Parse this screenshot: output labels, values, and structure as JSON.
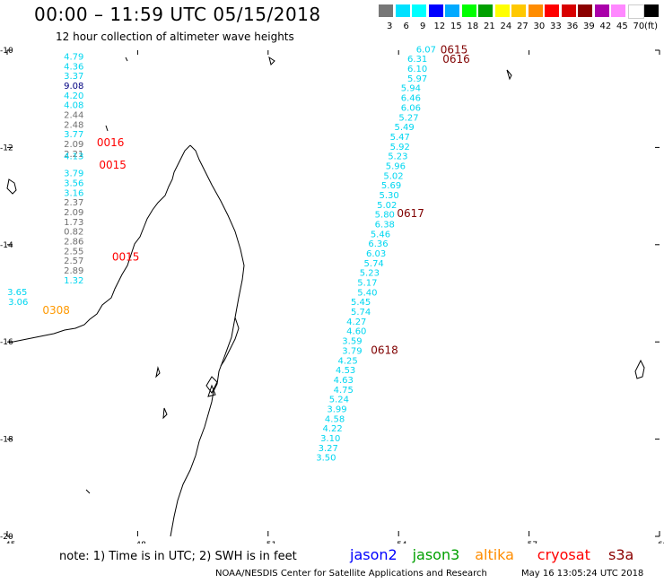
{
  "title": "00:00 – 11:59 UTC 05/15/2018",
  "subtitle": "12 hour collection of altimeter wave heights",
  "scale": {
    "labels": [
      "3",
      "6",
      "9",
      "12",
      "15",
      "18",
      "21",
      "24",
      "27",
      "30",
      "33",
      "36",
      "39",
      "42",
      "45",
      "70",
      "(ft)"
    ],
    "colors": [
      "#777777",
      "#00e1ff",
      "#00ffff",
      "#0000ff",
      "#00aaff",
      "#00ff00",
      "#00a000",
      "#ffff00",
      "#ffc800",
      "#ff8c00",
      "#ff0000",
      "#d80000",
      "#8b0000",
      "#aa00aa",
      "#ff88ff",
      "#ffffff",
      "#000000"
    ]
  },
  "map": {
    "lon_ticks": [
      "45",
      "48",
      "51",
      "54",
      "57",
      "60"
    ],
    "lat_ticks": [
      "-10",
      "-12",
      "-14",
      "-16",
      "-18",
      "-20"
    ],
    "lon_range": [
      45,
      60
    ],
    "lat_range": [
      -20,
      -10
    ],
    "tracks": [
      {
        "satellite": "jason2",
        "points": [
          {
            "lon": 46.55,
            "lat": -10.12,
            "v": "4.79",
            "c": "cyan"
          },
          {
            "lon": 46.55,
            "lat": -10.32,
            "v": "4.36",
            "c": "cyan"
          },
          {
            "lon": 46.55,
            "lat": -10.52,
            "v": "3.37",
            "c": "cyan"
          },
          {
            "lon": 46.55,
            "lat": -10.72,
            "v": "9.08",
            "c": "navy"
          },
          {
            "lon": 46.55,
            "lat": -10.92,
            "v": "4.20",
            "c": "cyan"
          },
          {
            "lon": 46.55,
            "lat": -11.12,
            "v": "4.08",
            "c": "cyan"
          },
          {
            "lon": 46.55,
            "lat": -11.32,
            "v": "2.44",
            "c": "gray"
          },
          {
            "lon": 46.55,
            "lat": -11.52,
            "v": "2.48",
            "c": "gray"
          },
          {
            "lon": 46.55,
            "lat": -11.72,
            "v": "3.77",
            "c": "cyan"
          },
          {
            "lon": 46.55,
            "lat": -11.92,
            "v": "2.09",
            "c": "gray"
          },
          {
            "lon": 46.55,
            "lat": -12.12,
            "v": "2.21",
            "c": "gray"
          },
          {
            "lon": 46.55,
            "lat": -12.17,
            "v": "4.13",
            "c": "cyan"
          },
          {
            "lon": 46.55,
            "lat": -12.52,
            "v": "3.79",
            "c": "cyan"
          },
          {
            "lon": 46.55,
            "lat": -12.72,
            "v": "3.56",
            "c": "cyan"
          },
          {
            "lon": 46.55,
            "lat": -12.92,
            "v": "3.16",
            "c": "cyan"
          },
          {
            "lon": 46.55,
            "lat": -13.12,
            "v": "2.37",
            "c": "gray"
          },
          {
            "lon": 46.55,
            "lat": -13.32,
            "v": "2.09",
            "c": "gray"
          },
          {
            "lon": 46.55,
            "lat": -13.52,
            "v": "1.73",
            "c": "gray"
          },
          {
            "lon": 46.55,
            "lat": -13.72,
            "v": "0.82",
            "c": "gray"
          },
          {
            "lon": 46.55,
            "lat": -13.92,
            "v": "2.86",
            "c": "gray"
          },
          {
            "lon": 46.55,
            "lat": -14.12,
            "v": "2.55",
            "c": "gray"
          },
          {
            "lon": 46.55,
            "lat": -14.32,
            "v": "2.57",
            "c": "gray"
          },
          {
            "lon": 46.55,
            "lat": -14.52,
            "v": "2.89",
            "c": "gray"
          },
          {
            "lon": 46.55,
            "lat": -14.72,
            "v": "1.32",
            "c": "cyan"
          },
          {
            "lon": 45.25,
            "lat": -14.96,
            "v": "3.65",
            "c": "cyan"
          },
          {
            "lon": 45.27,
            "lat": -15.17,
            "v": "3.06",
            "c": "cyan"
          }
        ]
      },
      {
        "satellite": "jason2",
        "points": [
          {
            "lon": 54.65,
            "lat": -9.97,
            "v": "6.07",
            "c": "cyan"
          },
          {
            "lon": 54.45,
            "lat": -10.17,
            "v": "6.31",
            "c": "cyan"
          },
          {
            "lon": 54.45,
            "lat": -10.37,
            "v": "6.10",
            "c": "cyan"
          },
          {
            "lon": 54.45,
            "lat": -10.57,
            "v": "5.97",
            "c": "cyan"
          },
          {
            "lon": 54.3,
            "lat": -10.77,
            "v": "5.94",
            "c": "cyan"
          },
          {
            "lon": 54.3,
            "lat": -10.97,
            "v": "6.46",
            "c": "cyan"
          },
          {
            "lon": 54.3,
            "lat": -11.17,
            "v": "6.06",
            "c": "cyan"
          },
          {
            "lon": 54.25,
            "lat": -11.37,
            "v": "5.27",
            "c": "cyan"
          },
          {
            "lon": 54.15,
            "lat": -11.57,
            "v": "5.49",
            "c": "cyan"
          },
          {
            "lon": 54.05,
            "lat": -11.77,
            "v": "5.47",
            "c": "cyan"
          },
          {
            "lon": 54.05,
            "lat": -11.97,
            "v": "5.92",
            "c": "cyan"
          },
          {
            "lon": 54.0,
            "lat": -12.17,
            "v": "5.23",
            "c": "cyan"
          },
          {
            "lon": 53.95,
            "lat": -12.37,
            "v": "5.96",
            "c": "cyan"
          },
          {
            "lon": 53.9,
            "lat": -12.57,
            "v": "5.02",
            "c": "cyan"
          },
          {
            "lon": 53.85,
            "lat": -12.77,
            "v": "5.69",
            "c": "cyan"
          },
          {
            "lon": 53.8,
            "lat": -12.97,
            "v": "5.30",
            "c": "cyan"
          },
          {
            "lon": 53.75,
            "lat": -13.17,
            "v": "5.02",
            "c": "cyan"
          },
          {
            "lon": 53.7,
            "lat": -13.37,
            "v": "5.80",
            "c": "cyan"
          },
          {
            "lon": 53.7,
            "lat": -13.57,
            "v": "6.38",
            "c": "cyan"
          },
          {
            "lon": 53.6,
            "lat": -13.77,
            "v": "5.46",
            "c": "cyan"
          },
          {
            "lon": 53.55,
            "lat": -13.97,
            "v": "6.36",
            "c": "cyan"
          },
          {
            "lon": 53.5,
            "lat": -14.17,
            "v": "6.03",
            "c": "cyan"
          },
          {
            "lon": 53.45,
            "lat": -14.37,
            "v": "5.74",
            "c": "cyan"
          },
          {
            "lon": 53.35,
            "lat": -14.57,
            "v": "5.23",
            "c": "cyan"
          },
          {
            "lon": 53.3,
            "lat": -14.77,
            "v": "5.17",
            "c": "cyan"
          },
          {
            "lon": 53.3,
            "lat": -14.97,
            "v": "5.40",
            "c": "cyan"
          },
          {
            "lon": 53.15,
            "lat": -15.17,
            "v": "5.45",
            "c": "cyan"
          },
          {
            "lon": 53.15,
            "lat": -15.37,
            "v": "5.74",
            "c": "cyan"
          },
          {
            "lon": 53.05,
            "lat": -15.57,
            "v": "4.27",
            "c": "cyan"
          },
          {
            "lon": 53.05,
            "lat": -15.77,
            "v": "4.60",
            "c": "cyan"
          },
          {
            "lon": 52.95,
            "lat": -15.97,
            "v": "3.59",
            "c": "cyan"
          },
          {
            "lon": 52.95,
            "lat": -16.17,
            "v": "3.79",
            "c": "cyan"
          },
          {
            "lon": 52.85,
            "lat": -16.37,
            "v": "4.25",
            "c": "cyan"
          },
          {
            "lon": 52.8,
            "lat": -16.57,
            "v": "4.53",
            "c": "cyan"
          },
          {
            "lon": 52.75,
            "lat": -16.77,
            "v": "4.63",
            "c": "cyan"
          },
          {
            "lon": 52.75,
            "lat": -16.97,
            "v": "4.75",
            "c": "cyan"
          },
          {
            "lon": 52.65,
            "lat": -17.17,
            "v": "5.24",
            "c": "cyan"
          },
          {
            "lon": 52.6,
            "lat": -17.37,
            "v": "3.99",
            "c": "cyan"
          },
          {
            "lon": 52.55,
            "lat": -17.57,
            "v": "4.58",
            "c": "cyan"
          },
          {
            "lon": 52.5,
            "lat": -17.77,
            "v": "4.22",
            "c": "cyan"
          },
          {
            "lon": 52.45,
            "lat": -17.97,
            "v": "3.10",
            "c": "cyan"
          },
          {
            "lon": 52.4,
            "lat": -18.17,
            "v": "3.27",
            "c": "cyan"
          },
          {
            "lon": 52.35,
            "lat": -18.37,
            "v": "3.50",
            "c": "cyan"
          }
        ]
      }
    ],
    "time_labels": [
      {
        "lon": 47.35,
        "lat": -11.88,
        "t": "0016",
        "c": "red"
      },
      {
        "lon": 47.4,
        "lat": -12.34,
        "t": "0015",
        "c": "red"
      },
      {
        "lon": 47.7,
        "lat": -14.23,
        "t": "0015",
        "c": "red"
      },
      {
        "lon": 46.1,
        "lat": -15.33,
        "t": "0308",
        "c": "orange"
      },
      {
        "lon": 55.25,
        "lat": -9.97,
        "t": "0615",
        "c": "darkred"
      },
      {
        "lon": 55.3,
        "lat": -10.17,
        "t": "0616",
        "c": "darkred"
      },
      {
        "lon": 54.25,
        "lat": -13.34,
        "t": "0617",
        "c": "darkred"
      },
      {
        "lon": 53.65,
        "lat": -16.15,
        "t": "0618",
        "c": "darkred"
      }
    ]
  },
  "note": "note: 1) Time is in UTC; 2) SWH is in feet",
  "legend": [
    {
      "label": "jason2",
      "color": "#0000ff"
    },
    {
      "label": "jason3",
      "color": "#00a000"
    },
    {
      "label": "altika",
      "color": "#ff8c00"
    },
    {
      "label": "cryosat",
      "color": "#ff0000"
    },
    {
      "label": "s3a",
      "color": "#8b0000"
    }
  ],
  "credit": "NOAA/NESDIS Center for Satellite Applications and Research",
  "timestamp": "May 16 13:05:24 UTC 2018"
}
